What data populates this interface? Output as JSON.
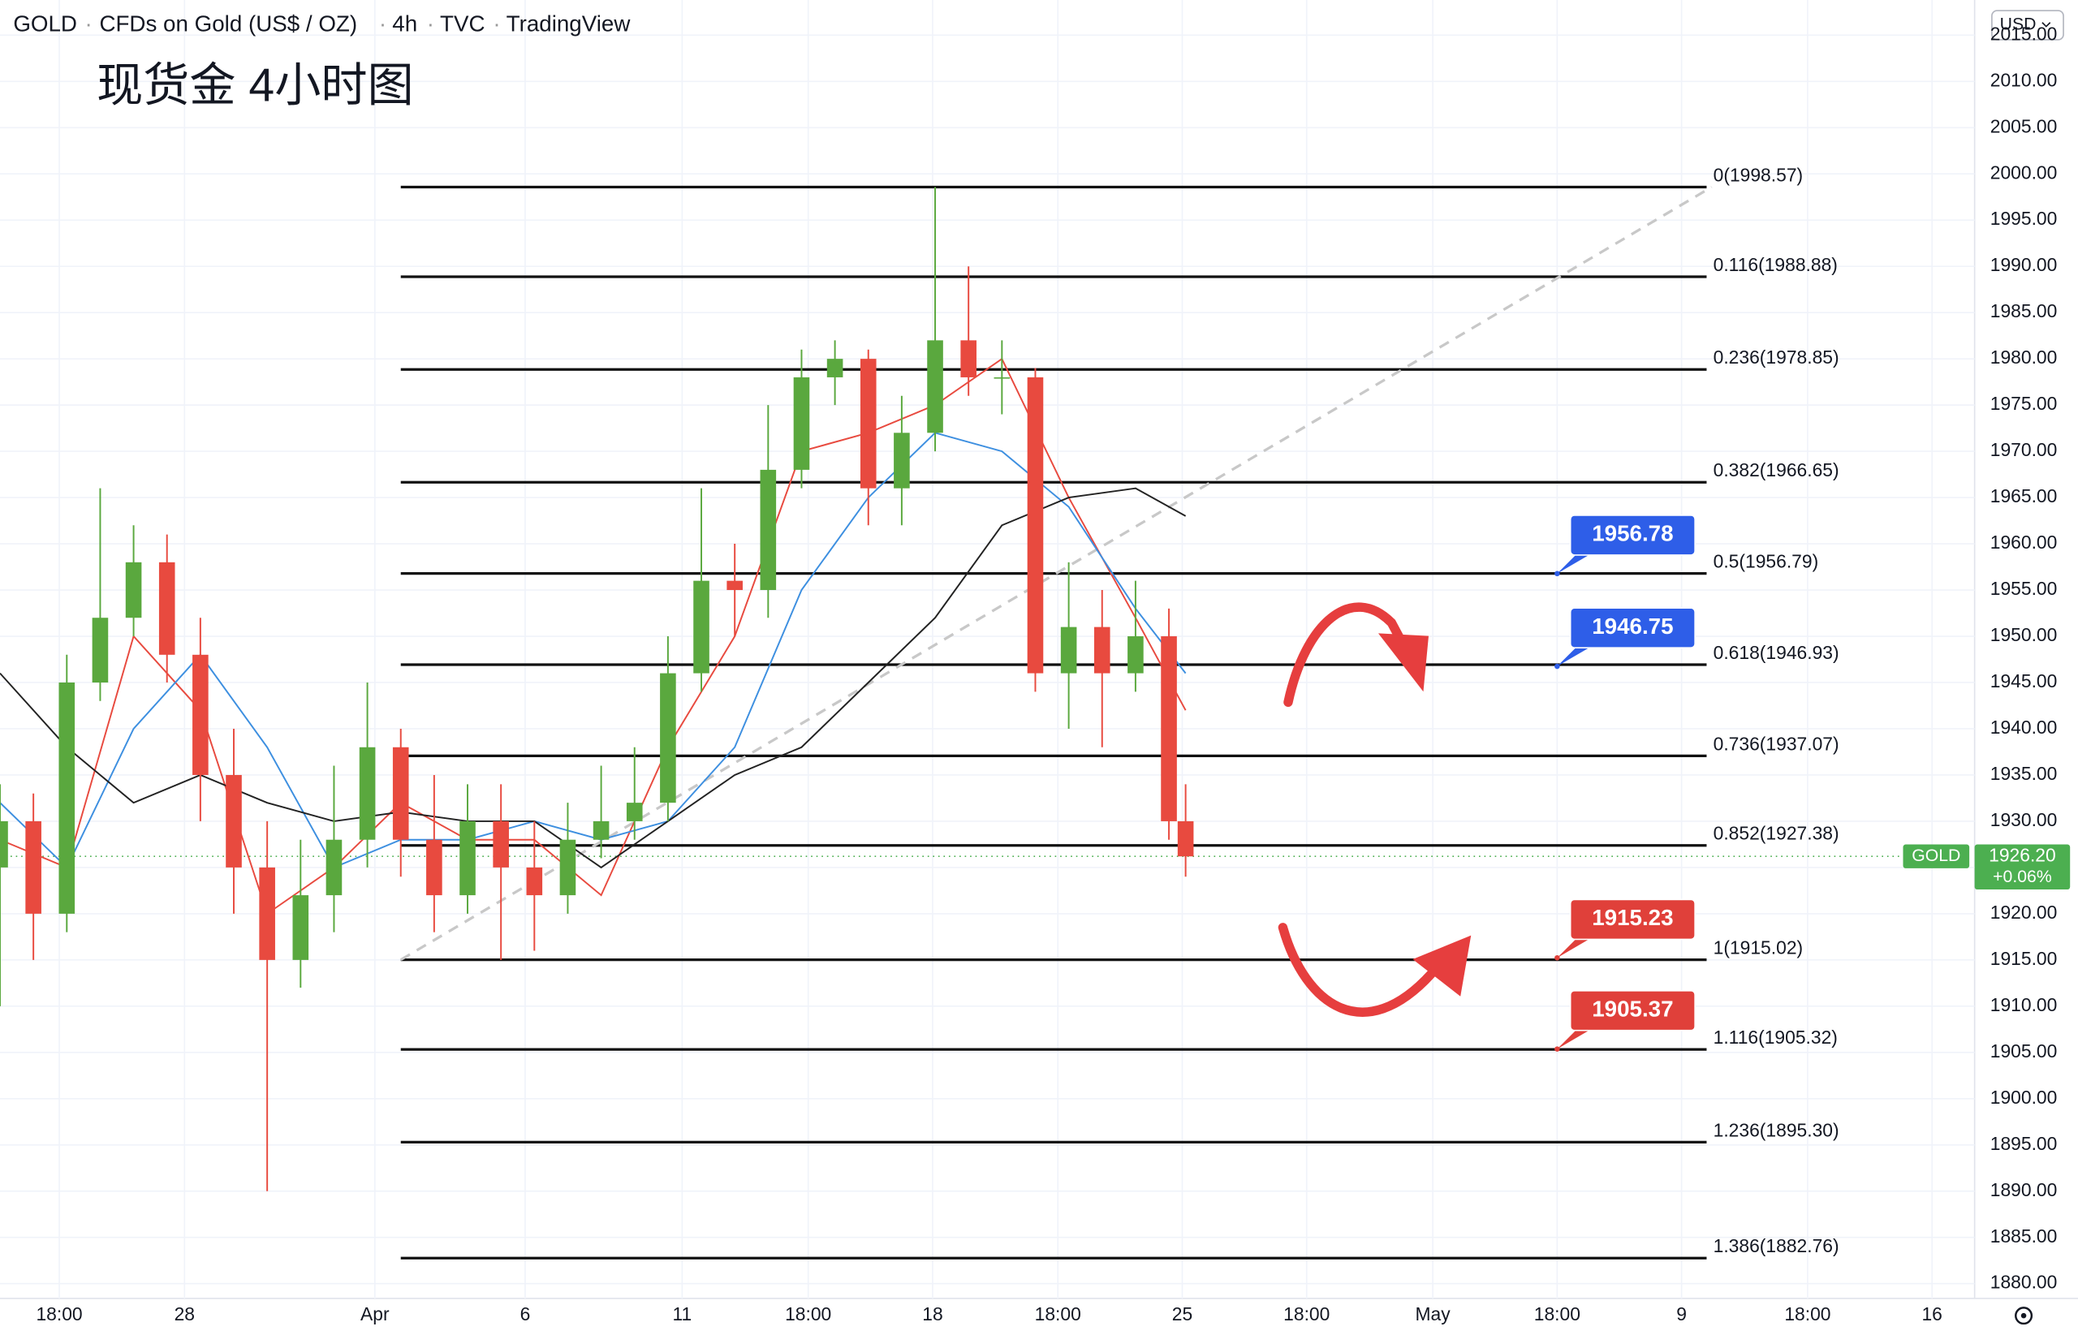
{
  "header": {
    "symbol": "GOLD",
    "name": "CFDs on Gold (US$ / OZ)",
    "interval": "4h",
    "exchange": "TVC",
    "platform": "TradingView",
    "currency": "USD"
  },
  "chart_data": {
    "type": "candlestick",
    "title": "现货金 4小时图",
    "x": [
      0,
      4,
      8,
      12,
      16,
      20,
      24,
      28,
      32,
      36,
      40,
      44,
      48,
      52,
      56,
      60,
      64,
      68,
      72,
      76,
      80,
      84,
      88,
      92,
      96,
      100,
      104,
      108,
      112,
      116,
      120,
      124,
      128,
      132,
      136,
      140,
      142
    ],
    "open": [
      1925,
      1930,
      1920,
      1945,
      1952,
      1958,
      1948,
      1935,
      1925,
      1915,
      1922,
      1928,
      1938,
      1928,
      1922,
      1930,
      1925,
      1922,
      1928,
      1930,
      1932,
      1946,
      1956,
      1955,
      1968,
      1978,
      1980,
      1966,
      1972,
      1982,
      1978,
      1978,
      1946,
      1951,
      1946,
      1950,
      1930
    ],
    "high": [
      1934,
      1933,
      1948,
      1966,
      1962,
      1961,
      1952,
      1940,
      1930,
      1928,
      1936,
      1945,
      1940,
      1935,
      1934,
      1934,
      1930,
      1932,
      1936,
      1938,
      1950,
      1966,
      1960,
      1975,
      1981,
      1982,
      1981,
      1976,
      1998.57,
      1990,
      1982,
      1979,
      1958,
      1955,
      1956,
      1953,
      1934
    ],
    "low": [
      1910,
      1915,
      1918,
      1943,
      1950,
      1945,
      1930,
      1920,
      1890,
      1912,
      1918,
      1925,
      1924,
      1918,
      1920,
      1915,
      1916,
      1920,
      1926,
      1928,
      1930,
      1944,
      1950,
      1952,
      1966,
      1975,
      1962,
      1962,
      1970,
      1976,
      1974,
      1944,
      1940,
      1938,
      1944,
      1928,
      1924
    ],
    "close": [
      1930,
      1920,
      1945,
      1952,
      1958,
      1948,
      1935,
      1925,
      1915,
      1922,
      1928,
      1938,
      1928,
      1922,
      1930,
      1925,
      1922,
      1928,
      1930,
      1932,
      1946,
      1956,
      1955,
      1968,
      1978,
      1980,
      1966,
      1972,
      1982,
      1978,
      1978,
      1946,
      1951,
      1946,
      1950,
      1930,
      1926.2
    ],
    "up_color": "#5aa83e",
    "down_color": "#e84a3f",
    "grid": true,
    "xlim": [
      0,
      236.5
    ],
    "ylim": [
      1878.4,
      2018.8
    ],
    "xticks": [
      {
        "value": 7.1,
        "label": "18:00"
      },
      {
        "value": 22.1,
        "label": "28"
      },
      {
        "value": 44.9,
        "label": "Apr"
      },
      {
        "value": 62.9,
        "label": "6"
      },
      {
        "value": 81.7,
        "label": "11"
      },
      {
        "value": 96.8,
        "label": "18:00"
      },
      {
        "value": 111.7,
        "label": "18"
      },
      {
        "value": 126.7,
        "label": "18:00"
      },
      {
        "value": 141.6,
        "label": "25"
      },
      {
        "value": 156.5,
        "label": "18:00"
      },
      {
        "value": 171.6,
        "label": "May"
      },
      {
        "value": 186.5,
        "label": "18:00"
      },
      {
        "value": 201.4,
        "label": "9"
      },
      {
        "value": 216.5,
        "label": "18:00"
      },
      {
        "value": 231.4,
        "label": "16"
      }
    ],
    "yticks": [
      {
        "value": 1880,
        "label": "1880.00"
      },
      {
        "value": 1885,
        "label": "1885.00"
      },
      {
        "value": 1890,
        "label": "1890.00"
      },
      {
        "value": 1895,
        "label": "1895.00"
      },
      {
        "value": 1900,
        "label": "1900.00"
      },
      {
        "value": 1905,
        "label": "1905.00"
      },
      {
        "value": 1910,
        "label": "1910.00"
      },
      {
        "value": 1915,
        "label": "1915.00"
      },
      {
        "value": 1920,
        "label": "1920.00"
      },
      {
        "value": 1925,
        "label": "1925.00"
      },
      {
        "value": 1930,
        "label": "1930.00"
      },
      {
        "value": 1935,
        "label": "1935.00"
      },
      {
        "value": 1940,
        "label": "1940.00"
      },
      {
        "value": 1945,
        "label": "1945.00"
      },
      {
        "value": 1950,
        "label": "1950.00"
      },
      {
        "value": 1955,
        "label": "1955.00"
      },
      {
        "value": 1960,
        "label": "1960.00"
      },
      {
        "value": 1965,
        "label": "1965.00"
      },
      {
        "value": 1970,
        "label": "1970.00"
      },
      {
        "value": 1975,
        "label": "1975.00"
      },
      {
        "value": 1980,
        "label": "1980.00"
      },
      {
        "value": 1985,
        "label": "1985.00"
      },
      {
        "value": 1990,
        "label": "1990.00"
      },
      {
        "value": 1995,
        "label": "1995.00"
      },
      {
        "value": 2000,
        "label": "2000.00"
      },
      {
        "value": 2005,
        "label": "2005.00"
      },
      {
        "value": 2010,
        "label": "2010.00"
      },
      {
        "value": 2015,
        "label": "2015.00"
      }
    ],
    "moving_averages": [
      {
        "color": "#e84a3f",
        "x": [
          0,
          8,
          16,
          24,
          32,
          40,
          48,
          56,
          64,
          72,
          80,
          88,
          96,
          104,
          112,
          120,
          128,
          136,
          142
        ],
        "values": [
          1928,
          1925,
          1950,
          1942,
          1920,
          1925,
          1932,
          1928,
          1928,
          1922,
          1938,
          1950,
          1970,
          1972,
          1975,
          1980,
          1965,
          1952,
          1942
        ]
      },
      {
        "color": "#3d8fe0",
        "x": [
          0,
          8,
          16,
          24,
          32,
          40,
          48,
          56,
          64,
          72,
          80,
          88,
          96,
          104,
          112,
          120,
          128,
          136,
          142
        ],
        "values": [
          1932,
          1925,
          1940,
          1948,
          1938,
          1925,
          1928,
          1928,
          1930,
          1928,
          1930,
          1938,
          1955,
          1965,
          1972,
          1970,
          1964,
          1953,
          1946
        ]
      },
      {
        "color": "#222222",
        "x": [
          0,
          8,
          16,
          24,
          32,
          40,
          48,
          56,
          64,
          72,
          80,
          88,
          96,
          104,
          112,
          120,
          128,
          136,
          142
        ],
        "values": [
          1946,
          1938,
          1932,
          1935,
          1932,
          1930,
          1931,
          1930,
          1930,
          1925,
          1930,
          1935,
          1938,
          1945,
          1952,
          1962,
          1965,
          1966,
          1963
        ]
      }
    ],
    "trendline": {
      "x": [
        48,
        205
      ],
      "values": [
        1915.02,
        1998.57
      ]
    },
    "fib_range": [
      48,
      204.4
    ],
    "fib_levels": [
      {
        "value": 1998.57,
        "label": "0(1998.57)"
      },
      {
        "value": 1988.88,
        "label": "0.116(1988.88)"
      },
      {
        "value": 1978.85,
        "label": "0.236(1978.85)"
      },
      {
        "value": 1966.65,
        "label": "0.382(1966.65)"
      },
      {
        "value": 1956.79,
        "label": "0.5(1956.79)"
      },
      {
        "value": 1946.93,
        "label": "0.618(1946.93)"
      },
      {
        "value": 1937.07,
        "label": "0.736(1937.07)"
      },
      {
        "value": 1927.38,
        "label": "0.852(1927.38)"
      },
      {
        "value": 1915.02,
        "label": "1(1915.02)"
      },
      {
        "value": 1905.32,
        "label": "1.116(1905.32)"
      },
      {
        "value": 1895.3,
        "label": "1.236(1895.30)"
      },
      {
        "value": 1882.76,
        "label": "1.386(1882.76)"
      }
    ],
    "price_callouts": [
      {
        "value": 1956.78,
        "color": "#2e5ee8"
      },
      {
        "value": 1946.75,
        "color": "#2e5ee8"
      },
      {
        "value": 1915.23,
        "color": "#e0403a"
      },
      {
        "value": 1905.37,
        "color": "#e0403a"
      }
    ],
    "last_price": {
      "symbol": "GOLD",
      "value": 1926.2,
      "label": "1926.20",
      "change": "+0.06%",
      "color": "#4caf50"
    }
  }
}
